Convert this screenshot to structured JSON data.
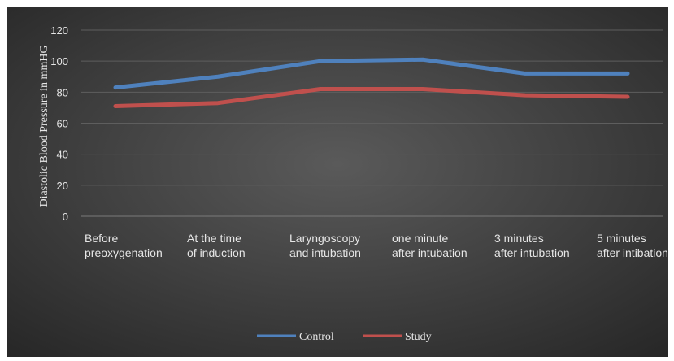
{
  "chart_data": {
    "type": "line",
    "title": "",
    "ylabel": "Diastolic Blood Pressure in mmHG",
    "xlabel": "",
    "ylim": [
      0,
      120
    ],
    "yticks": [
      0,
      20,
      40,
      60,
      80,
      100,
      120
    ],
    "categories": [
      [
        "Before",
        "preoxygenation"
      ],
      [
        "At the time",
        "of induction"
      ],
      [
        "Laryngoscopy",
        "and intubation"
      ],
      [
        "one minute",
        "after intubation"
      ],
      [
        "3 minutes",
        "after intubation"
      ],
      [
        "5 minutes",
        "after intibation"
      ]
    ],
    "series": [
      {
        "name": "Control",
        "color": "#4f81bd",
        "values": [
          83,
          90,
          100,
          101,
          92,
          92
        ]
      },
      {
        "name": "Study",
        "color": "#c0504d",
        "values": [
          71,
          73,
          82,
          82,
          78,
          77
        ]
      }
    ],
    "grid": true,
    "legend_position": "bottom",
    "background": "#3f3f3f"
  }
}
